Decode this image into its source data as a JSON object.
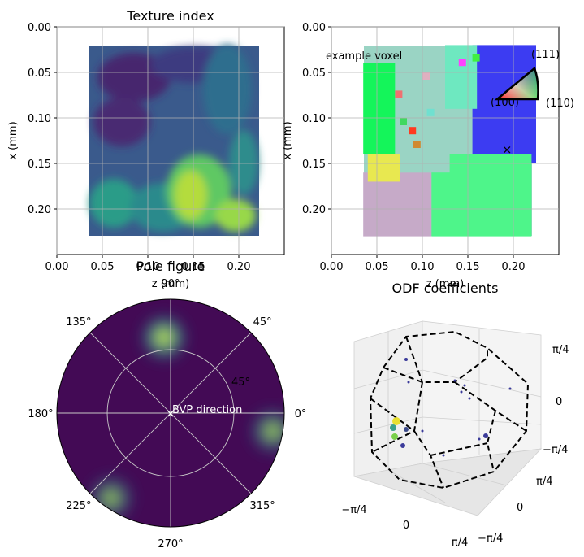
{
  "chart_data": [
    {
      "type": "heatmap",
      "title": "Texture index",
      "xlabel": "z (mm)",
      "ylabel": "x (mm)",
      "xlim": [
        0,
        0.25
      ],
      "ylim": [
        0.25,
        0
      ],
      "xticks": [
        "0.00",
        "0.05",
        "0.10",
        "0.15",
        "0.20"
      ],
      "yticks": [
        "0.00",
        "0.05",
        "0.10",
        "0.15",
        "0.20"
      ],
      "xtick_values": [
        0,
        0.05,
        0.1,
        0.15,
        0.2
      ],
      "ytick_values": [
        0,
        0.05,
        0.1,
        0.15,
        0.2
      ],
      "grid": true,
      "colormap": "viridis",
      "sample_extent": {
        "z": [
          0.035,
          0.22
        ],
        "x": [
          0.022,
          0.23
        ]
      }
    },
    {
      "type": "heatmap",
      "title": "",
      "xlabel": "z (mm)",
      "ylabel": "x (mm)",
      "xlim": [
        0,
        0.25
      ],
      "ylim": [
        0.25,
        0
      ],
      "xticks": [
        "0.00",
        "0.05",
        "0.10",
        "0.15",
        "0.20"
      ],
      "yticks": [
        "0.00",
        "0.05",
        "0.10",
        "0.15",
        "0.20"
      ],
      "xtick_values": [
        0,
        0.05,
        0.1,
        0.15,
        0.2
      ],
      "ytick_values": [
        0,
        0.05,
        0.1,
        0.15,
        0.2
      ],
      "grid": true,
      "annotation": "example voxel",
      "marker": {
        "symbol": "×",
        "z": 0.193,
        "x": 0.135
      },
      "ipf_key_labels": [
        "(111)",
        "(100)",
        "(110)"
      ],
      "grains": [
        {
          "color": "#3c3cf2",
          "z": [
            0.155,
            0.225
          ],
          "x": [
            0.02,
            0.15
          ]
        },
        {
          "color": "#4ef58a",
          "z": [
            0.11,
            0.22
          ],
          "x": [
            0.14,
            0.23
          ]
        },
        {
          "color": "#c6aac8",
          "z": [
            0.035,
            0.11
          ],
          "x": [
            0.16,
            0.23
          ]
        },
        {
          "color": "#14f55a",
          "z": [
            0.035,
            0.07
          ],
          "x": [
            0.04,
            0.14
          ]
        },
        {
          "color": "#9ad4c4",
          "z": [
            0.07,
            0.13
          ],
          "x": [
            0.025,
            0.16
          ]
        },
        {
          "color": "#e8e850",
          "z": [
            0.04,
            0.075
          ],
          "x": [
            0.14,
            0.17
          ]
        },
        {
          "color": "#6ee8c0",
          "z": [
            0.125,
            0.16
          ],
          "x": [
            0.02,
            0.09
          ]
        }
      ]
    },
    {
      "type": "heatmap",
      "projection": "polar",
      "title": "Pole figure",
      "angle_labels": [
        "0°",
        "45°",
        "90°",
        "135°",
        "180°",
        "225°",
        "270°",
        "315°"
      ],
      "radial_tick_labels": [
        "45°"
      ],
      "center_label": "BVP direction",
      "colormap": "viridis",
      "hotspots": [
        {
          "azimuth_deg": 95,
          "polar_deg": 60,
          "intensity": 1.0
        },
        {
          "azimuth_deg": 350,
          "polar_deg": 82,
          "intensity": 0.7
        },
        {
          "azimuth_deg": 235,
          "polar_deg": 82,
          "intensity": 0.65
        }
      ]
    },
    {
      "type": "scatter",
      "projection": "3d",
      "title": "ODF coefficients",
      "x_ticks": [
        "−π/4",
        "0",
        "π/4"
      ],
      "y_ticks": [
        "π/4",
        "0",
        "−π/4"
      ],
      "z_ticks": [
        "π/4",
        "0",
        "−π/4"
      ],
      "fundamental_zone": "truncated cube (dashed)"
    }
  ]
}
